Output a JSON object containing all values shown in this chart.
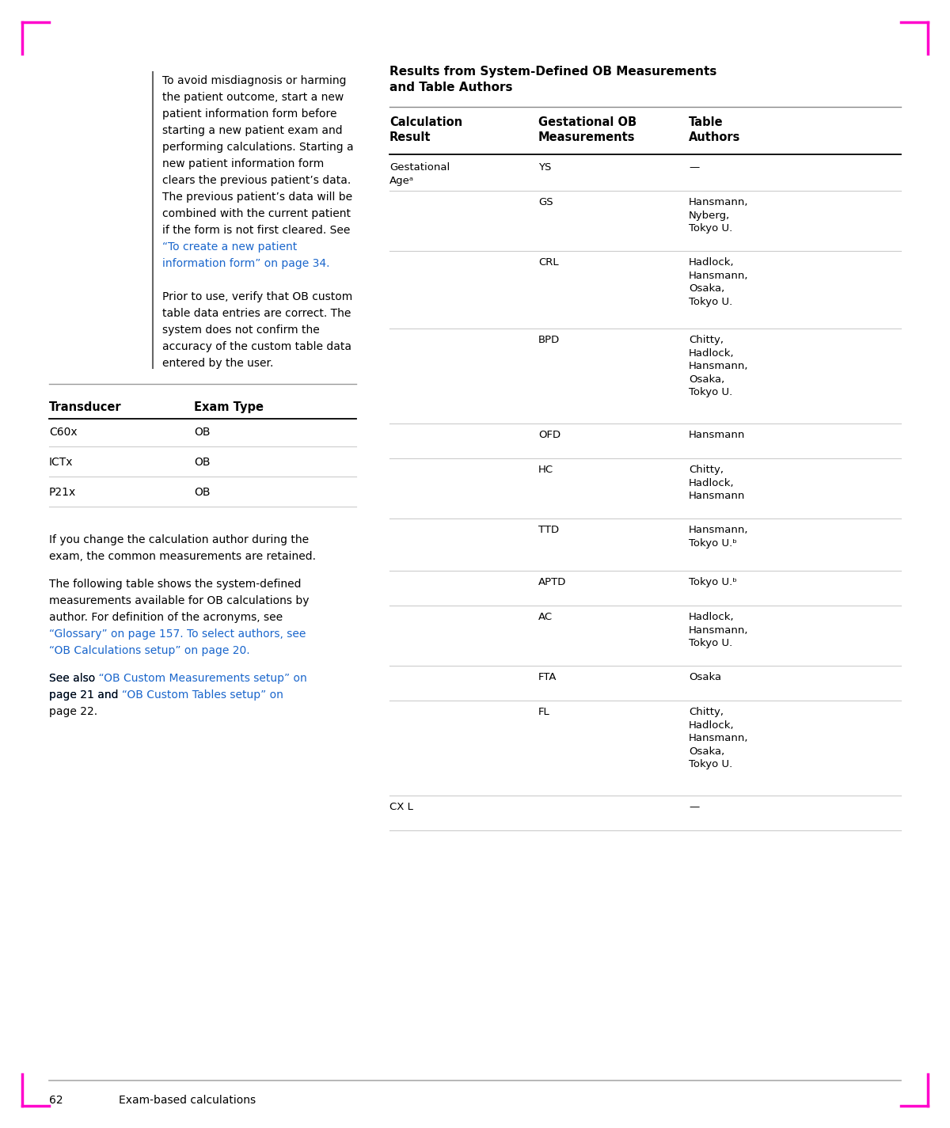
{
  "page_width": 12.0,
  "page_height": 14.25,
  "bg_color": "#ffffff",
  "magenta_color": "#ff00cc",
  "text_color": "#000000",
  "blue_link_color": "#1a66cc",
  "footer_line_color": "#aaaaaa",
  "title_text": "Results from System-Defined OB Measurements\nand Table Authors",
  "warning_lines": [
    [
      "To avoid misdiagnosis or harming",
      "black"
    ],
    [
      "the patient outcome, start a new",
      "black"
    ],
    [
      "patient information form before",
      "black"
    ],
    [
      "starting a new patient exam and",
      "black"
    ],
    [
      "performing calculations. Starting a",
      "black"
    ],
    [
      "new patient information form",
      "black"
    ],
    [
      "clears the previous patient’s data.",
      "black"
    ],
    [
      "The previous patient’s data will be",
      "black"
    ],
    [
      "combined with the current patient",
      "black"
    ],
    [
      "if the form is not first cleared. See",
      "black"
    ],
    [
      "“To create a new patient",
      "blue"
    ],
    [
      "information form” on page 34.",
      "blue"
    ],
    [
      "",
      "black"
    ],
    [
      "Prior to use, verify that OB custom",
      "black"
    ],
    [
      "table data entries are correct. The",
      "black"
    ],
    [
      "system does not confirm the",
      "black"
    ],
    [
      "accuracy of the custom table data",
      "black"
    ],
    [
      "entered by the user.",
      "black"
    ]
  ],
  "transducer_rows": [
    [
      "C60x",
      "OB"
    ],
    [
      "ICTx",
      "OB"
    ],
    [
      "P21x",
      "OB"
    ]
  ],
  "body_paragraphs": [
    {
      "lines": [
        [
          [
            "If you change the calculation author during the",
            "black"
          ]
        ],
        [
          [
            "exam, the common measurements are retained.",
            "black"
          ]
        ]
      ]
    },
    {
      "lines": [
        [
          [
            "The following table shows the system-defined",
            "black"
          ]
        ],
        [
          [
            "measurements available for OB calculations by",
            "black"
          ]
        ],
        [
          [
            "author. For definition of the acronyms, see",
            "black"
          ]
        ],
        [
          [
            "“Glossary” on page 157. To select authors, see",
            "blue"
          ]
        ],
        [
          [
            "“OB Calculations setup” on page 20.",
            "blue"
          ]
        ]
      ]
    },
    {
      "lines": [
        [
          [
            "See also ",
            "black"
          ],
          [
            "“OB Custom Measurements setup” on",
            "blue"
          ]
        ],
        [
          [
            "page 21 and ",
            "black"
          ],
          [
            "“OB Custom Tables setup” on",
            "blue"
          ]
        ],
        [
          [
            "page 22.",
            "black"
          ]
        ]
      ]
    }
  ],
  "ob_table_rows": [
    [
      "Gestational\nAgeᵃ",
      "YS",
      "—"
    ],
    [
      "",
      "GS",
      "Hansmann,\nNyberg,\nTokyo U."
    ],
    [
      "",
      "CRL",
      "Hadlock,\nHansmann,\nOsaka,\nTokyo U."
    ],
    [
      "",
      "BPD",
      "Chitty,\nHadlock,\nHansmann,\nOsaka,\nTokyo U."
    ],
    [
      "",
      "OFD",
      "Hansmann"
    ],
    [
      "",
      "HC",
      "Chitty,\nHadlock,\nHansmann"
    ],
    [
      "",
      "TTD",
      "Hansmann,\nTokyo U.ᵇ"
    ],
    [
      "",
      "APTD",
      "Tokyo U.ᵇ"
    ],
    [
      "",
      "AC",
      "Hadlock,\nHansmann,\nTokyo U."
    ],
    [
      "",
      "FTA",
      "Osaka"
    ],
    [
      "",
      "FL",
      "Chitty,\nHadlock,\nHansmann,\nOsaka,\nTokyo U."
    ],
    [
      "CX L",
      "",
      "—"
    ]
  ],
  "ob_row_heights": [
    0.36,
    0.68,
    0.9,
    1.12,
    0.36,
    0.68,
    0.58,
    0.36,
    0.68,
    0.36,
    1.12,
    0.36
  ],
  "footer_text_num": "62",
  "footer_text_label": "Exam-based calculations"
}
